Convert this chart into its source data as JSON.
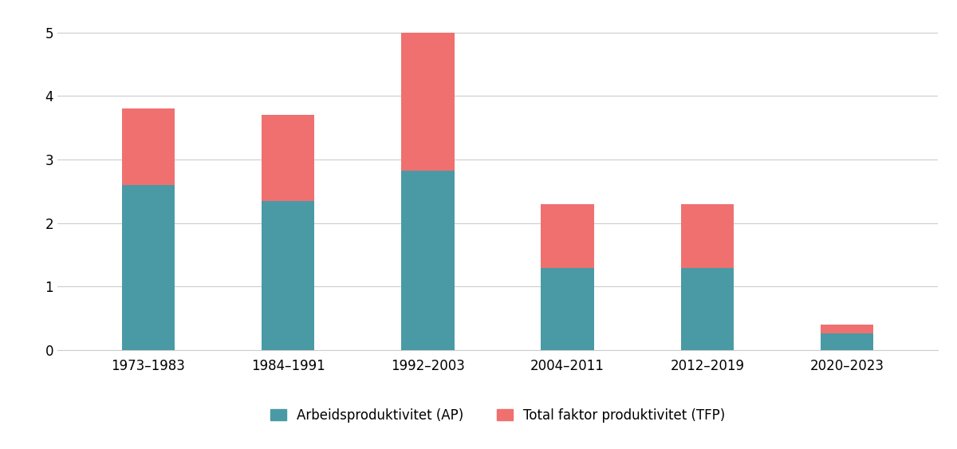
{
  "categories": [
    "1973–1983",
    "1984–1991",
    "1992–2003",
    "2004–2011",
    "2012–2019",
    "2020–2023"
  ],
  "ap_values": [
    2.6,
    2.35,
    2.83,
    1.3,
    1.3,
    0.27
  ],
  "tfp_values": [
    1.2,
    1.35,
    2.17,
    1.0,
    1.0,
    0.13
  ],
  "ap_color": "#4a9aa5",
  "tfp_color": "#f07070",
  "ylim": [
    0,
    5.3
  ],
  "yticks": [
    0,
    1,
    2,
    3,
    4,
    5
  ],
  "legend_ap": "Arbeidsproduktivitet (AP)",
  "legend_tfp": "Total faktor produktivitet (TFP)",
  "background_color": "#ffffff",
  "grid_color": "#cccccc",
  "bar_width": 0.38
}
